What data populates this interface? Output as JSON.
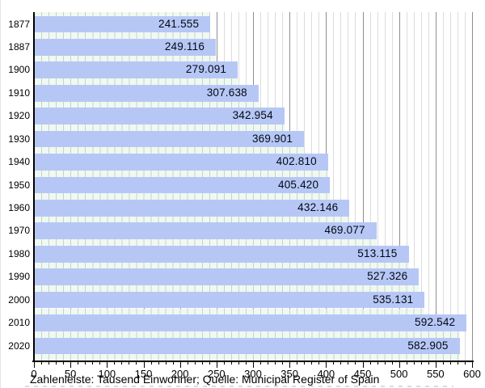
{
  "chart_data": {
    "type": "bar",
    "orientation": "horizontal",
    "title": "",
    "categories": [
      "1877",
      "1887",
      "1900",
      "1910",
      "1920",
      "1930",
      "1940",
      "1950",
      "1960",
      "1970",
      "1980",
      "1990",
      "2000",
      "2010",
      "2020"
    ],
    "values": [
      241.555,
      249.116,
      279.091,
      307.638,
      342.954,
      369.901,
      402.81,
      405.42,
      432.146,
      469.077,
      513.115,
      527.326,
      535.131,
      592.542,
      582.905
    ],
    "value_labels": [
      "241.555",
      "249.116",
      "279.091",
      "307.638",
      "342.954",
      "369.901",
      "402.810",
      "405.420",
      "432.146",
      "469.077",
      "513.115",
      "527.326",
      "535.131",
      "592.542",
      "582.905"
    ],
    "unit": "Tausend Einwohner",
    "xlim": [
      0,
      600
    ],
    "x_major_step": 50,
    "x_minor_step": 10,
    "x_tick_labels": [
      "0",
      "50",
      "100",
      "150",
      "200",
      "250",
      "300",
      "350",
      "400",
      "450",
      "500",
      "550",
      "600"
    ],
    "grid": true,
    "legend": "none"
  },
  "caption": "Zahlenleiste: Tausend Einwohner; Quelle: Municipal Register of Spain",
  "colors": {
    "background": "#ffffff",
    "bar": "#b7c7f5",
    "bar_label": "#000814",
    "gap_strip_bg": "#f0f9f1",
    "gap_strip_line": "#c7d2c9",
    "grid_minor": "#dcdcdc",
    "grid_major": "#8e8e8e",
    "axis": "#000000",
    "text": "#000000"
  }
}
